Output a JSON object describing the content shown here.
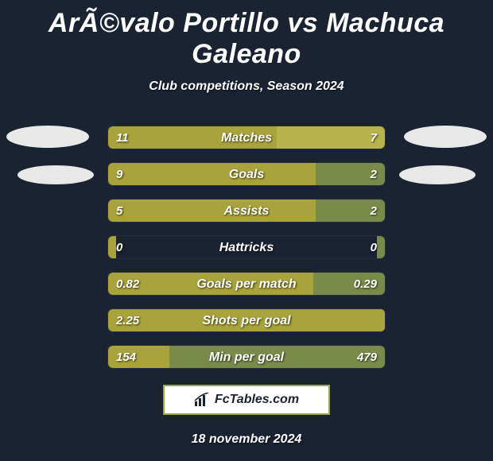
{
  "title": "ArÃ©valo Portillo vs Machuca Galeano",
  "subtitle": "Club competitions, Season 2024",
  "date": "18 november 2024",
  "logo_text": "FcTables.com",
  "colors": {
    "background": "#1a2332",
    "bar_primary": "#a8a33a",
    "bar_secondary": "#7a8a4a",
    "bar_primary_light": "#b8b34a",
    "ellipse": "#e8e8e8",
    "logo_border": "#9aa84a",
    "text": "#ffffff"
  },
  "stats": [
    {
      "label": "Matches",
      "left_val": "11",
      "right_val": "7",
      "left_pct": 61,
      "right_pct": 39,
      "left_color": "#a8a33a",
      "right_color": "#b8b34a"
    },
    {
      "label": "Goals",
      "left_val": "9",
      "right_val": "2",
      "left_pct": 75,
      "right_pct": 25,
      "left_color": "#a8a33a",
      "right_color": "#7a8a4a"
    },
    {
      "label": "Assists",
      "left_val": "5",
      "right_val": "2",
      "left_pct": 75,
      "right_pct": 25,
      "left_color": "#a8a33a",
      "right_color": "#7a8a4a"
    },
    {
      "label": "Hattricks",
      "left_val": "0",
      "right_val": "0",
      "left_pct": 3,
      "right_pct": 3,
      "left_color": "#a8a33a",
      "right_color": "#7a8a4a"
    },
    {
      "label": "Goals per match",
      "left_val": "0.82",
      "right_val": "0.29",
      "left_pct": 74,
      "right_pct": 26,
      "left_color": "#a8a33a",
      "right_color": "#7a8a4a"
    },
    {
      "label": "Shots per goal",
      "left_val": "2.25",
      "right_val": "",
      "left_pct": 100,
      "right_pct": 0,
      "left_color": "#a8a33a",
      "right_color": "#7a8a4a"
    },
    {
      "label": "Min per goal",
      "left_val": "154",
      "right_val": "479",
      "left_pct": 22,
      "right_pct": 78,
      "left_color": "#a8a33a",
      "right_color": "#7a8a4a"
    }
  ]
}
